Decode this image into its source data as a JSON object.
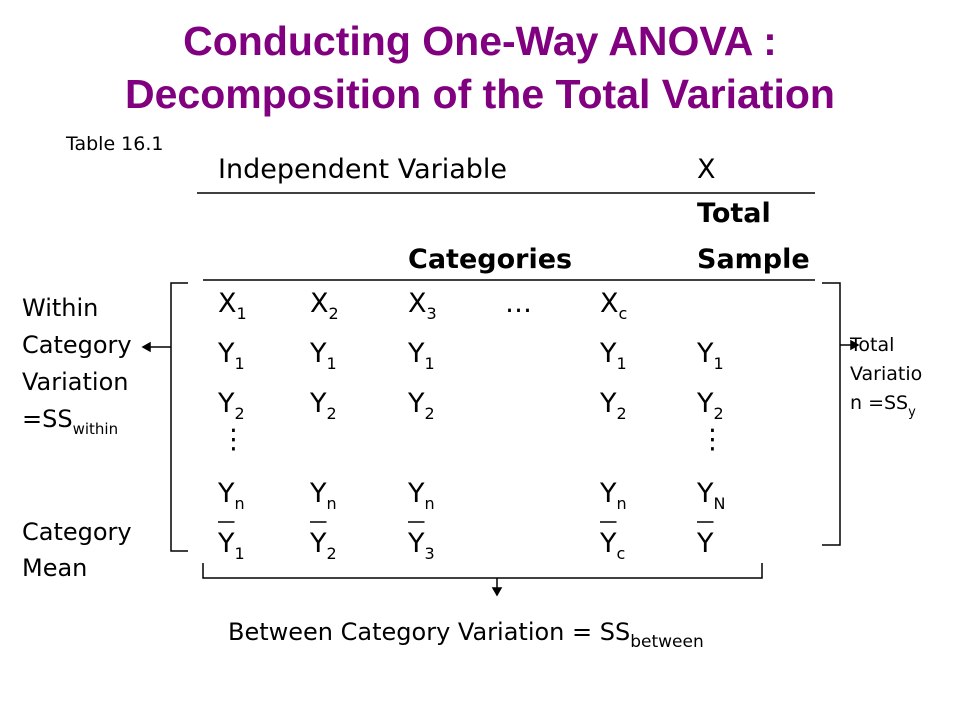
{
  "title": [
    "Conducting One-Way ANOVA :",
    "Decomposition of the Total Variation"
  ],
  "table_label": "Table 16.1",
  "header": {
    "independent_variable": "Independent Variable",
    "x": "X",
    "total": "Total",
    "categories": "Categories",
    "sample": "Sample"
  },
  "rows": [
    [
      {
        "base": "X",
        "sub": "1"
      },
      {
        "base": "X",
        "sub": "2"
      },
      {
        "base": "X",
        "sub": "3"
      },
      "…",
      {
        "base": "X",
        "sub": "c"
      },
      null
    ],
    [
      {
        "base": "Y",
        "sub": "1"
      },
      {
        "base": "Y",
        "sub": "1"
      },
      {
        "base": "Y",
        "sub": "1"
      },
      null,
      {
        "base": "Y",
        "sub": "1"
      },
      {
        "base": "Y",
        "sub": "1"
      }
    ],
    [
      {
        "base": "Y",
        "sub": "2"
      },
      {
        "base": "Y",
        "sub": "2"
      },
      {
        "base": "Y",
        "sub": "2"
      },
      null,
      {
        "base": "Y",
        "sub": "2"
      },
      {
        "base": "Y",
        "sub": "2"
      }
    ],
    [
      "⋮",
      null,
      null,
      null,
      null,
      "⋮"
    ],
    [
      {
        "base": "Y",
        "sub": "n"
      },
      {
        "base": "Y",
        "sub": "n"
      },
      {
        "base": "Y",
        "sub": "n"
      },
      null,
      {
        "base": "Y",
        "sub": "n"
      },
      {
        "base": "Y",
        "sub": "N"
      }
    ],
    [
      {
        "base": "Y",
        "sub": "1"
      },
      {
        "base": "Y",
        "sub": "2"
      },
      {
        "base": "Y",
        "sub": "3"
      },
      null,
      {
        "base": "Y",
        "sub": "c"
      },
      {
        "base": "Y"
      }
    ]
  ],
  "within_label": {
    "lines": [
      "Within",
      "Category",
      "Variation"
    ],
    "last": {
      "base": "=SS",
      "sub": "within"
    }
  },
  "category_mean_label": [
    "Category",
    "Mean"
  ],
  "total_label": {
    "lines": [
      "Total",
      "Variatio"
    ],
    "last": {
      "base": "n =SS",
      "sub": "y"
    }
  },
  "between_label": {
    "base": "Between Category Variation = SS",
    "sub": "between"
  }
}
